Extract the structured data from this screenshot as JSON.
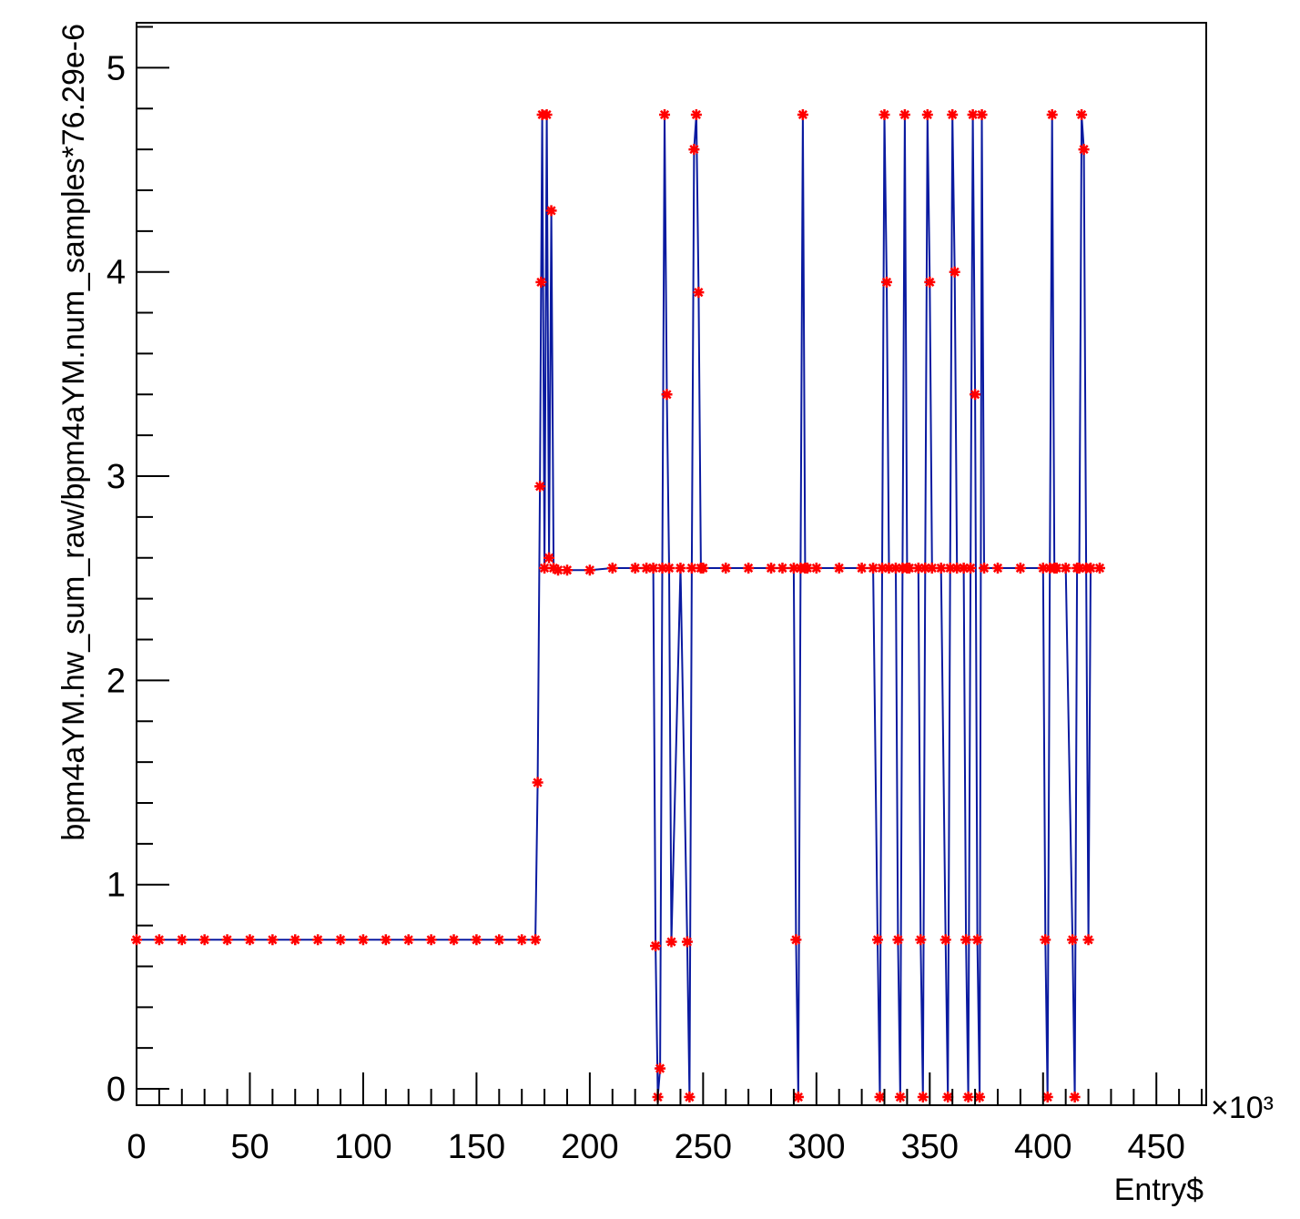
{
  "chart_data": {
    "type": "scatter",
    "title": "",
    "xlabel": "Entry$",
    "ylabel": "bpm4aYM.hw_sum_raw/bpm4aYM.num_samples*76.29e-6",
    "x_multiplier": "×10³",
    "xlim": [
      0,
      472
    ],
    "ylim": [
      -0.08,
      5.22
    ],
    "grid": false,
    "legend": "none",
    "x_ticks": [
      0,
      50,
      100,
      150,
      200,
      250,
      300,
      350,
      400,
      450
    ],
    "y_ticks": [
      0,
      1,
      2,
      3,
      4,
      5
    ],
    "x_tick_labels": [
      "0",
      "50",
      "100",
      "150",
      "200",
      "250",
      "300",
      "350",
      "400",
      "450"
    ],
    "y_tick_labels": [
      "0",
      "1",
      "2",
      "3",
      "4",
      "5"
    ],
    "colors": {
      "line": "#0a1aa0",
      "marker": "#ff0000",
      "axis": "#000000"
    },
    "marker": "star",
    "series": [
      {
        "x": [
          0,
          10,
          20,
          30,
          40,
          50,
          60,
          70,
          80,
          90,
          100,
          110,
          120,
          130,
          140,
          150,
          160,
          170,
          176,
          177,
          178,
          178.5,
          179,
          180,
          181,
          182,
          183,
          184,
          186,
          190,
          200,
          210,
          220,
          225,
          228,
          229,
          230,
          231,
          232,
          233,
          234,
          235,
          236,
          240,
          243,
          244,
          245,
          246,
          247,
          248,
          249,
          250,
          260,
          270,
          280,
          285,
          290,
          291,
          292,
          293,
          294,
          295,
          296,
          300,
          310,
          320,
          325,
          327,
          328,
          329,
          330,
          331,
          332,
          335,
          336,
          337,
          338,
          339,
          340,
          341,
          345,
          346,
          347,
          348,
          349,
          350,
          351,
          355,
          357,
          358,
          359,
          360,
          361,
          362,
          365,
          366,
          367,
          368,
          369,
          370,
          371,
          372,
          373,
          374,
          380,
          390,
          400,
          401,
          402,
          403,
          404,
          405,
          406,
          410,
          413,
          414,
          415,
          416,
          417,
          418,
          419,
          420,
          421,
          425
        ],
        "y": [
          0.73,
          0.73,
          0.73,
          0.73,
          0.73,
          0.73,
          0.73,
          0.73,
          0.73,
          0.73,
          0.73,
          0.73,
          0.73,
          0.73,
          0.73,
          0.73,
          0.73,
          0.73,
          0.73,
          1.5,
          2.95,
          3.95,
          4.77,
          2.55,
          4.77,
          2.6,
          4.3,
          2.55,
          2.54,
          2.54,
          2.54,
          2.55,
          2.55,
          2.55,
          2.55,
          0.7,
          -0.04,
          0.1,
          2.55,
          4.77,
          3.4,
          2.55,
          0.72,
          2.55,
          0.72,
          -0.04,
          2.55,
          4.6,
          4.77,
          3.9,
          2.55,
          2.55,
          2.55,
          2.55,
          2.55,
          2.55,
          2.55,
          0.73,
          -0.04,
          2.55,
          4.77,
          2.55,
          2.55,
          2.55,
          2.55,
          2.55,
          2.55,
          0.73,
          -0.04,
          2.55,
          4.77,
          3.95,
          2.55,
          2.55,
          0.73,
          -0.04,
          2.55,
          4.77,
          2.55,
          2.55,
          2.55,
          0.73,
          -0.04,
          2.55,
          4.77,
          3.95,
          2.55,
          2.55,
          0.73,
          -0.04,
          2.55,
          4.77,
          4.0,
          2.55,
          2.55,
          0.73,
          -0.04,
          2.55,
          4.77,
          3.4,
          0.73,
          -0.04,
          4.77,
          2.55,
          2.55,
          2.55,
          2.55,
          0.73,
          -0.04,
          2.55,
          4.77,
          2.55,
          2.55,
          2.55,
          0.73,
          -0.04,
          2.55,
          2.55,
          4.77,
          4.6,
          2.55,
          0.73,
          2.55,
          2.55
        ]
      }
    ]
  }
}
